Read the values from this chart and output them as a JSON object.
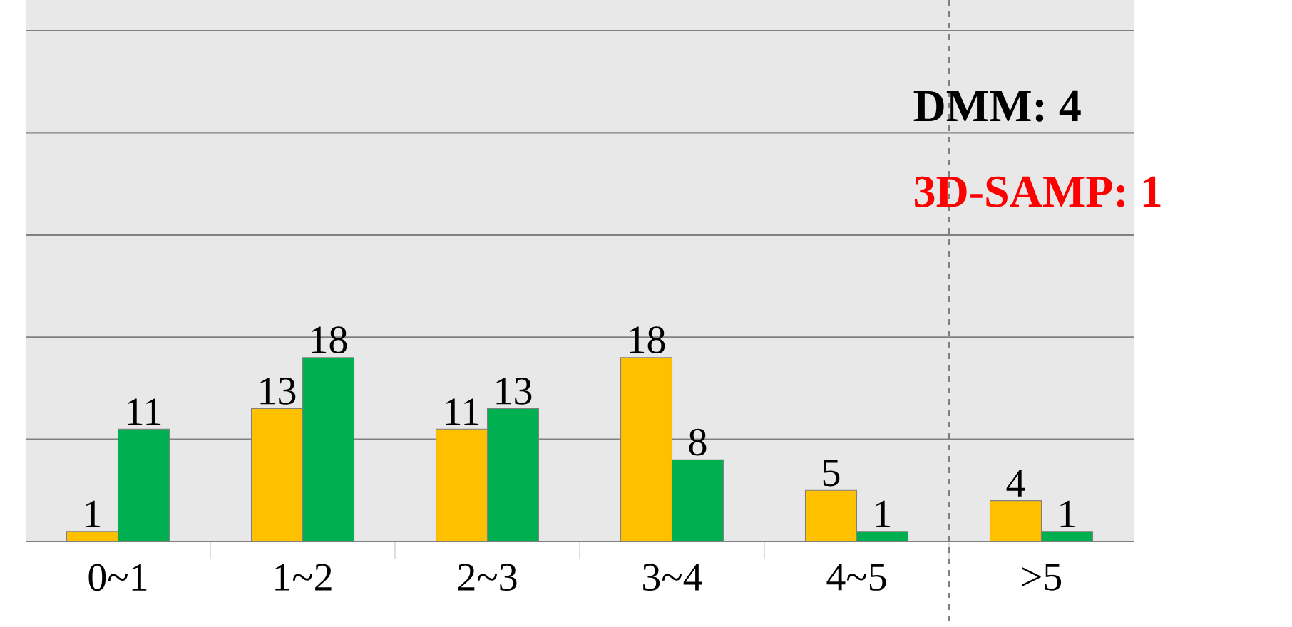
{
  "chart_data": {
    "type": "bar",
    "categories": [
      "0~1",
      "1~2",
      "2~3",
      "3~4",
      "4~5",
      ">5"
    ],
    "series": [
      {
        "color": "#ffc000",
        "values": [
          1,
          13,
          11,
          18,
          5,
          4
        ]
      },
      {
        "color": "#00b050",
        "values": [
          11,
          18,
          13,
          8,
          1,
          1
        ]
      }
    ],
    "ylim": [
      0,
      53
    ],
    "tick_labels": "x",
    "grid": "y",
    "data_labels": true,
    "annotations": [
      "**DMM: 4**",
      "**3D-SAMP: 1**"
    ]
  }
}
